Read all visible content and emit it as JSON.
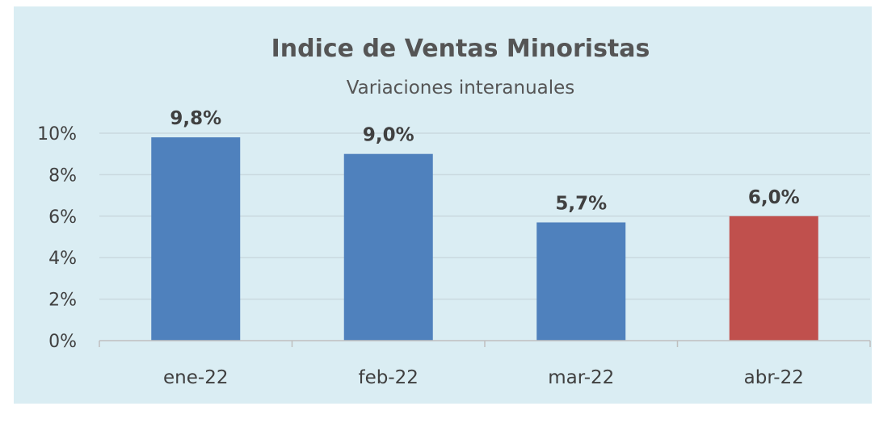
{
  "colors": {
    "background": "#daedf3",
    "gridline": "#c9d9df",
    "axis": "#bfbfbf",
    "bar_default": "#4f81bd",
    "bar_highlight": "#c0504d"
  },
  "chart_data": {
    "type": "bar",
    "title": "Indice de Ventas Minoristas",
    "subtitle": "Variaciones interanuales",
    "xlabel": "",
    "ylabel": "",
    "categories": [
      "ene-22",
      "feb-22",
      "mar-22",
      "abr-22"
    ],
    "values": [
      9.8,
      9.0,
      5.7,
      6.0
    ],
    "data_labels": [
      "9,8%",
      "9,0%",
      "5,7%",
      "6,0%"
    ],
    "highlight_index": 3,
    "ylim": [
      0,
      10
    ],
    "yticks": [
      0,
      2,
      4,
      6,
      8,
      10
    ],
    "ytick_labels": [
      "0%",
      "2%",
      "4%",
      "6%",
      "8%",
      "10%"
    ],
    "grid": true,
    "legend": "none"
  }
}
